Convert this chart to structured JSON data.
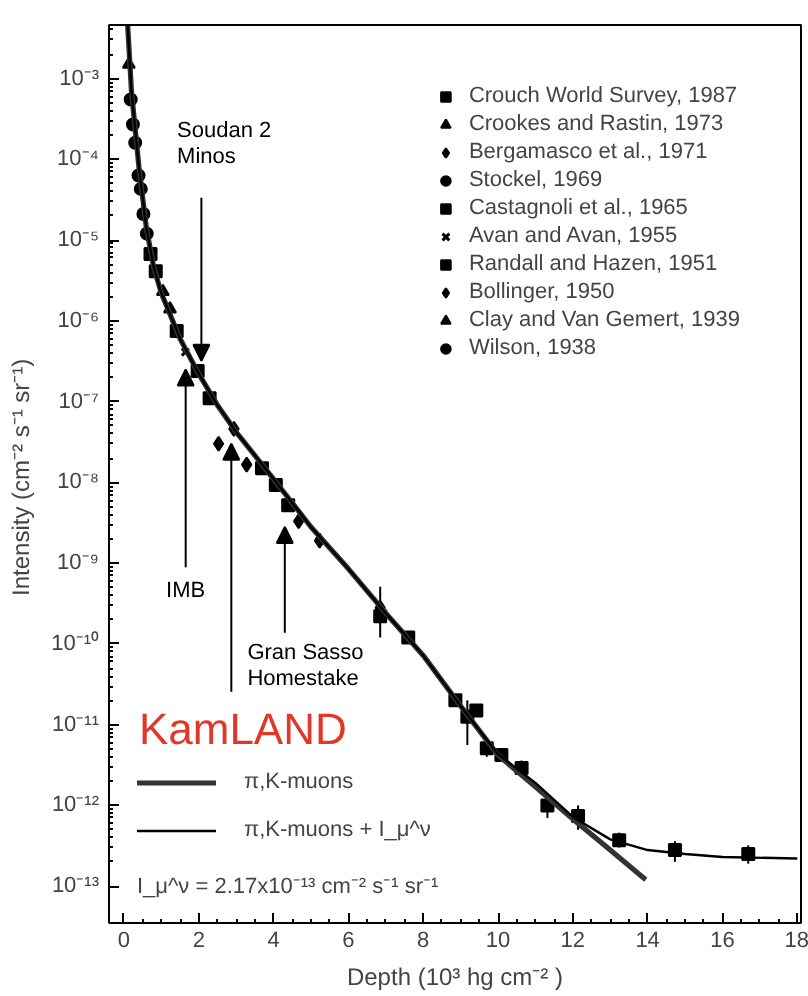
{
  "chart_data": {
    "type": "scatter",
    "xlabel": "Depth (10³ hg cm⁻² )",
    "ylabel": "Intensity  (cm⁻² s⁻¹ sr⁻¹)",
    "log": "y",
    "xlim": [
      -0.4,
      18.1
    ],
    "ylim": [
      3.5e-14,
      0.0046
    ],
    "xticks": [
      0,
      2,
      4,
      6,
      8,
      10,
      12,
      14,
      16,
      18
    ],
    "yticks": [
      {
        "value": 1e-13,
        "label": "10⁻¹³"
      },
      {
        "value": 1e-12,
        "label": "10⁻¹²"
      },
      {
        "value": 1e-11,
        "label": "10⁻¹¹"
      },
      {
        "value": 1e-10,
        "label": "10⁻¹⁰"
      },
      {
        "value": 1e-09,
        "label": "10⁻⁹"
      },
      {
        "value": 1e-08,
        "label": "10⁻⁸"
      },
      {
        "value": 1e-07,
        "label": "10⁻⁷"
      },
      {
        "value": 1e-06,
        "label": "10⁻⁶"
      },
      {
        "value": 1e-05,
        "label": "10⁻⁵"
      },
      {
        "value": 0.0001,
        "label": "10⁻⁴"
      },
      {
        "value": 0.001,
        "label": "10⁻³"
      }
    ],
    "grid": false,
    "legend": "top right",
    "series": [
      {
        "name": "Crouch World Survey, 1987",
        "color": "#000000",
        "marker": "square",
        "x": [
          1.97,
          2.29,
          3.69,
          4.06,
          4.39,
          6.85,
          7.6,
          8.86,
          9.18,
          9.42,
          9.7,
          10.09,
          10.63,
          11.32,
          12.14,
          13.24,
          14.73,
          16.69
        ],
        "values": [
          2.4e-07,
          1.1e-07,
          1.5e-08,
          9.3e-09,
          5.2e-09,
          2.2e-10,
          1.2e-10,
          2e-11,
          1.25e-11,
          1.5e-11,
          5.1e-12,
          4.2e-12,
          2.9e-12,
          1e-12,
          7.4e-13,
          3.7e-13,
          2.8e-13,
          2.5e-13
        ],
        "errors": [
          null,
          null,
          null,
          null,
          null,
          [
            1.2e-10,
            5.1e-10
          ],
          null,
          null,
          [
            5.6e-12,
            2e-11
          ],
          null,
          [
            4e-12,
            6.5e-12
          ],
          null,
          [
            2.3e-12,
            3.6e-12
          ],
          [
            7e-13,
            1.4e-12
          ],
          [
            5e-13,
            1e-12
          ],
          [
            3e-13,
            4.6e-13
          ],
          [
            2e-13,
            3.6e-13
          ],
          [
            1.9e-13,
            3.2e-13
          ]
        ]
      },
      {
        "name": "Crookes and Rastin, 1973",
        "color": "#000000",
        "marker": "triangle",
        "x": [
          0.13
        ],
        "values": [
          0.0015
        ]
      },
      {
        "name": "Bergamasco et al., 1971",
        "color": "#000000",
        "marker": "diamond",
        "x": [
          4.67,
          5.23,
          6.85
        ],
        "values": [
          3.3e-09,
          1.9e-09,
          2.8e-10
        ]
      },
      {
        "name": "Stockel, 1969",
        "color": "#000000",
        "marker": "circle",
        "x": [
          0.45,
          0.52,
          0.61
        ],
        "values": [
          4.3e-05,
          2.1e-05,
          1.2e-05
        ]
      },
      {
        "name": "Castagnoli et al., 1965",
        "color": "#000000",
        "marker": "square",
        "x": [
          1.41
        ],
        "values": [
          7.5e-07
        ]
      },
      {
        "name": "Avan and Avan, 1955",
        "color": "#000000",
        "marker": "cross",
        "x": [
          1.64
        ],
        "values": [
          4.1e-07
        ]
      },
      {
        "name": "Randall and Hazen, 1951",
        "color": "#000000",
        "marker": "square",
        "x": [
          0.71,
          0.85
        ],
        "values": [
          6.7e-06,
          4.1e-06
        ]
      },
      {
        "name": "Bollinger, 1950",
        "color": "#000000",
        "marker": "diamond",
        "x": [
          2.53,
          2.94,
          3.28
        ],
        "values": [
          3e-08,
          4.6e-08,
          1.66e-08
        ]
      },
      {
        "name": "Clay and Van Gemert, 1939",
        "color": "#000000",
        "marker": "triangle",
        "x": [
          1.04,
          1.23
        ],
        "values": [
          2.3e-06,
          1.4e-06
        ]
      },
      {
        "name": "Wilson, 1938",
        "color": "#000000",
        "marker": "circle",
        "x": [
          0.18,
          0.24,
          0.3,
          0.39
        ],
        "values": [
          0.00055,
          0.00027,
          0.00016,
          6.3e-05
        ]
      },
      {
        "name": "π,K-muons",
        "type": "line",
        "line_style": "solid",
        "color": "#333333",
        "x": [
          0.1,
          0.2,
          0.4,
          0.6,
          0.8,
          1.0,
          1.5,
          2.0,
          2.5,
          3.0,
          4.0,
          5.0,
          6.0,
          7.0,
          8.0,
          9.0,
          10.0,
          11.0,
          12.0,
          13.0,
          13.95
        ],
        "values": [
          0.0045,
          0.0007,
          8e-05,
          1.4e-05,
          4.5e-06,
          2.2e-06,
          6e-07,
          2.2e-07,
          9e-08,
          4.2e-08,
          1.1e-08,
          2.8e-09,
          8.5e-10,
          2.4e-10,
          7.2e-11,
          1.7e-11,
          4.2e-12,
          1.7e-12,
          6.8e-13,
          2.8e-13,
          1.2e-13
        ]
      },
      {
        "name": "π,K-muons + I_μ^ν",
        "type": "line",
        "line_style": "solid",
        "color": "#000000",
        "x": [
          0.1,
          0.2,
          0.4,
          0.6,
          0.8,
          1.0,
          1.5,
          2.0,
          2.5,
          3.0,
          4.0,
          5.0,
          6.0,
          7.0,
          8.0,
          9.0,
          10.0,
          11.0,
          12.0,
          13.0,
          14.0,
          15.0,
          16.0,
          18.0
        ],
        "values": [
          0.0045,
          0.0007,
          8e-05,
          1.4e-05,
          4.5e-06,
          2.2e-06,
          6e-07,
          2.2e-07,
          9e-08,
          4.2e-08,
          1.1e-08,
          2.8e-09,
          8.5e-10,
          2.4e-10,
          7.2e-11,
          1.7e-11,
          4.3e-12,
          1.9e-12,
          7.2e-13,
          3.8e-13,
          2.8e-13,
          2.5e-13,
          2.3e-13,
          2.2e-13
        ]
      }
    ],
    "annotations": [
      {
        "text": "Soudan 2\nMinos",
        "x": 2.07,
        "y": 3.2e-07
      },
      {
        "text": "IMB",
        "x": 1.65,
        "y": 2.5e-07
      },
      {
        "text": "KamLAND",
        "x": 2.87,
        "y": 3e-08
      },
      {
        "text": "Gran Sasso\nHomestake",
        "x": 4.3,
        "y": 2.8e-09
      },
      "I_μ^ν = 2.17x10⁻¹³ cm⁻² s⁻¹ sr⁻¹"
    ]
  }
}
